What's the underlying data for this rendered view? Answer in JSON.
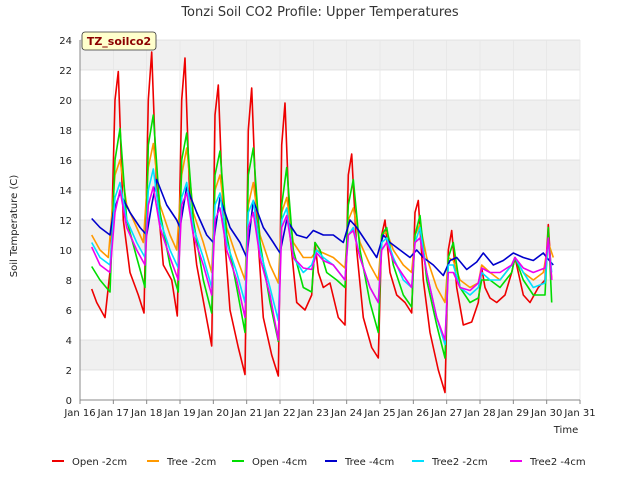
{
  "chart_data": {
    "type": "line",
    "title": "Tonzi Soil CO2 Profile: Upper Temperatures",
    "xlabel": "Time",
    "ylabel": "Soil Temperature (C)",
    "tag_label": "TZ_soilco2",
    "xlim": [
      16,
      31
    ],
    "ylim": [
      0,
      24
    ],
    "x_ticks": [
      16,
      17,
      18,
      19,
      20,
      21,
      22,
      23,
      24,
      25,
      26,
      27,
      28,
      29,
      30,
      31
    ],
    "x_tick_labels": [
      "Jan 16",
      "Jan 17",
      "Jan 18",
      "Jan 19",
      "Jan 20",
      "Jan 21",
      "Jan 22",
      "Jan 23",
      "Jan 24",
      "Jan 25",
      "Jan 26",
      "Jan 27",
      "Jan 28",
      "Jan 29",
      "Jan 30",
      "Jan 31"
    ],
    "y_ticks": [
      0,
      2,
      4,
      6,
      8,
      10,
      12,
      14,
      16,
      18,
      20,
      22,
      24
    ],
    "grid": true,
    "legend_position": "bottom",
    "series": [
      {
        "name": "Open -2cm",
        "color": "#ee0000",
        "x": [
          16.35,
          16.5,
          16.75,
          16.92,
          17.05,
          17.15,
          17.3,
          17.5,
          17.75,
          17.92,
          18.05,
          18.15,
          18.3,
          18.5,
          18.75,
          18.92,
          19.05,
          19.15,
          19.3,
          19.5,
          19.75,
          19.95,
          20.05,
          20.15,
          20.3,
          20.5,
          20.75,
          20.95,
          21.05,
          21.15,
          21.3,
          21.5,
          21.75,
          21.95,
          22.05,
          22.15,
          22.3,
          22.5,
          22.75,
          22.95,
          23.05,
          23.15,
          23.3,
          23.5,
          23.75,
          23.95,
          24.05,
          24.15,
          24.3,
          24.5,
          24.75,
          24.95,
          25.05,
          25.15,
          25.3,
          25.5,
          25.75,
          25.95,
          26.05,
          26.15,
          26.3,
          26.5,
          26.75,
          26.95,
          27.05,
          27.15,
          27.3,
          27.5,
          27.75,
          27.95,
          28.05,
          28.15,
          28.3,
          28.5,
          28.75,
          28.95,
          29.05,
          29.15,
          29.3,
          29.5,
          29.75,
          29.95,
          30.05,
          30.15
        ],
        "y": [
          7.4,
          6.5,
          5.5,
          9.0,
          20.0,
          21.9,
          12.0,
          8.5,
          7.0,
          5.8,
          20.0,
          23.2,
          14.0,
          9.0,
          8.0,
          5.6,
          20.0,
          22.8,
          13.0,
          9.0,
          6.0,
          3.6,
          19.0,
          21.0,
          12.0,
          6.0,
          3.5,
          1.7,
          18.0,
          20.8,
          12.0,
          5.5,
          3.0,
          1.6,
          17.0,
          19.8,
          11.0,
          6.5,
          6.0,
          7.0,
          10.5,
          8.5,
          7.5,
          7.8,
          5.5,
          5.0,
          15.0,
          16.4,
          10.0,
          5.5,
          3.5,
          2.8,
          11.0,
          12.0,
          8.5,
          7.0,
          6.5,
          5.8,
          12.5,
          13.3,
          8.0,
          4.5,
          2.0,
          0.5,
          10.0,
          11.3,
          7.5,
          5.0,
          5.2,
          6.5,
          8.8,
          7.5,
          6.8,
          6.5,
          7.0,
          8.5,
          9.5,
          8.5,
          7.0,
          6.5,
          7.5,
          8.0,
          11.7,
          8.0
        ]
      },
      {
        "name": "Tree -2cm",
        "color": "#ff9900",
        "x": [
          16.35,
          16.6,
          16.85,
          17.05,
          17.2,
          17.4,
          17.7,
          17.9,
          18.05,
          18.2,
          18.4,
          18.7,
          18.9,
          19.05,
          19.2,
          19.4,
          19.7,
          19.95,
          20.05,
          20.2,
          20.4,
          20.7,
          20.95,
          21.05,
          21.2,
          21.4,
          21.7,
          21.95,
          22.05,
          22.2,
          22.4,
          22.7,
          22.95,
          23.1,
          23.3,
          23.6,
          23.95,
          24.05,
          24.2,
          24.4,
          24.7,
          24.95,
          25.05,
          25.2,
          25.4,
          25.7,
          25.95,
          26.05,
          26.2,
          26.4,
          26.7,
          26.95,
          27.05,
          27.2,
          27.4,
          27.7,
          27.95,
          28.05,
          28.3,
          28.6,
          28.95,
          29.05,
          29.3,
          29.6,
          29.9,
          30.05,
          30.2
        ],
        "y": [
          11.0,
          10.0,
          9.5,
          15.0,
          16.0,
          13.0,
          11.5,
          10.5,
          15.5,
          17.1,
          13.0,
          11.0,
          10.0,
          15.0,
          16.8,
          12.5,
          10.5,
          8.5,
          14.0,
          15.0,
          11.5,
          9.5,
          8.0,
          13.0,
          14.5,
          11.0,
          9.0,
          7.8,
          12.5,
          13.5,
          10.5,
          9.5,
          9.5,
          10.0,
          9.8,
          9.5,
          8.8,
          12.0,
          12.8,
          10.5,
          9.0,
          8.0,
          11.0,
          11.2,
          10.0,
          9.0,
          8.5,
          11.0,
          11.7,
          9.5,
          7.5,
          6.5,
          9.5,
          9.3,
          8.0,
          7.5,
          7.8,
          9.0,
          8.5,
          8.0,
          9.0,
          9.5,
          8.5,
          8.0,
          8.5,
          10.5,
          9.5
        ]
      },
      {
        "name": "Open -4cm",
        "color": "#00dd00",
        "x": [
          16.35,
          16.6,
          16.9,
          17.05,
          17.2,
          17.4,
          17.7,
          17.95,
          18.05,
          18.2,
          18.4,
          18.7,
          18.95,
          19.05,
          19.2,
          19.4,
          19.7,
          19.95,
          20.05,
          20.2,
          20.4,
          20.7,
          20.95,
          21.05,
          21.2,
          21.4,
          21.7,
          21.95,
          22.05,
          22.2,
          22.4,
          22.7,
          22.95,
          23.05,
          23.2,
          23.4,
          23.7,
          23.95,
          24.05,
          24.2,
          24.4,
          24.7,
          24.95,
          25.05,
          25.2,
          25.4,
          25.7,
          25.95,
          26.05,
          26.2,
          26.4,
          26.7,
          26.95,
          27.05,
          27.2,
          27.4,
          27.7,
          27.95,
          28.05,
          28.3,
          28.6,
          28.95,
          29.05,
          29.3,
          29.6,
          29.95,
          30.05,
          30.15
        ],
        "y": [
          8.9,
          8.0,
          7.2,
          16.0,
          18.1,
          12.0,
          9.5,
          7.5,
          17.0,
          19.0,
          12.5,
          9.0,
          7.2,
          16.0,
          17.8,
          12.0,
          8.0,
          5.8,
          15.0,
          16.6,
          11.0,
          7.5,
          4.5,
          15.0,
          16.8,
          10.5,
          6.5,
          3.9,
          13.0,
          15.5,
          10.0,
          7.5,
          7.2,
          10.5,
          10.0,
          8.5,
          8.0,
          7.5,
          13.0,
          14.7,
          10.0,
          6.5,
          4.5,
          11.0,
          11.5,
          9.0,
          7.0,
          6.2,
          11.0,
          12.3,
          8.0,
          5.0,
          2.8,
          9.5,
          10.5,
          7.5,
          6.5,
          6.8,
          8.0,
          8.0,
          7.5,
          8.5,
          9.5,
          8.0,
          7.0,
          7.0,
          11.5,
          6.5
        ]
      },
      {
        "name": "Tree -4cm",
        "color": "#0000cc",
        "x": [
          16.35,
          16.6,
          16.9,
          17.0,
          17.2,
          17.5,
          17.8,
          18.0,
          18.15,
          18.3,
          18.6,
          18.9,
          19.0,
          19.2,
          19.5,
          19.8,
          20.0,
          20.2,
          20.5,
          20.8,
          21.0,
          21.2,
          21.5,
          21.8,
          22.0,
          22.2,
          22.5,
          22.8,
          23.0,
          23.3,
          23.6,
          23.9,
          24.1,
          24.3,
          24.6,
          24.9,
          25.1,
          25.3,
          25.6,
          25.9,
          26.1,
          26.3,
          26.6,
          26.9,
          27.1,
          27.3,
          27.6,
          27.9,
          28.1,
          28.4,
          28.7,
          29.0,
          29.3,
          29.6,
          29.9,
          30.0,
          30.2
        ],
        "y": [
          12.1,
          11.5,
          11.0,
          12.5,
          13.8,
          12.5,
          11.5,
          11.0,
          13.0,
          14.7,
          13.0,
          12.0,
          11.5,
          14.2,
          12.5,
          11.0,
          10.5,
          13.5,
          11.5,
          10.5,
          9.5,
          13.3,
          11.5,
          10.5,
          9.8,
          12.0,
          11.0,
          10.8,
          11.3,
          11.0,
          11.0,
          10.5,
          12.0,
          11.5,
          10.5,
          9.5,
          11.0,
          10.5,
          10.0,
          9.5,
          10.0,
          9.5,
          9.0,
          8.3,
          9.3,
          9.5,
          8.7,
          9.2,
          9.8,
          9.0,
          9.3,
          9.8,
          9.5,
          9.3,
          9.8,
          9.5,
          9.0
        ]
      },
      {
        "name": "Tree2 -2cm",
        "color": "#00e0ff",
        "x": [
          16.35,
          16.6,
          16.9,
          17.05,
          17.2,
          17.4,
          17.7,
          17.95,
          18.05,
          18.2,
          18.4,
          18.7,
          18.95,
          19.05,
          19.2,
          19.4,
          19.7,
          19.95,
          20.05,
          20.2,
          20.4,
          20.7,
          20.95,
          21.05,
          21.2,
          21.4,
          21.7,
          21.95,
          22.05,
          22.2,
          22.4,
          22.7,
          22.95,
          23.1,
          23.3,
          23.6,
          23.95,
          24.05,
          24.2,
          24.4,
          24.7,
          24.95,
          25.05,
          25.2,
          25.4,
          25.7,
          25.95,
          26.05,
          26.2,
          26.4,
          26.7,
          26.95,
          27.05,
          27.2,
          27.4,
          27.7,
          27.95,
          28.05,
          28.3,
          28.6,
          28.95,
          29.05,
          29.3,
          29.6,
          29.95,
          30.05,
          30.15
        ],
        "y": [
          10.5,
          9.5,
          9.0,
          13.5,
          14.5,
          12.0,
          10.5,
          9.5,
          14.0,
          15.4,
          12.0,
          10.0,
          8.8,
          13.5,
          14.5,
          11.5,
          9.5,
          7.5,
          13.0,
          13.8,
          10.5,
          8.5,
          6.5,
          12.5,
          13.3,
          10.0,
          7.5,
          5.3,
          12.0,
          12.8,
          9.5,
          8.5,
          9.0,
          10.0,
          9.5,
          9.0,
          8.0,
          11.0,
          11.5,
          9.5,
          7.5,
          6.5,
          10.5,
          10.8,
          9.5,
          8.0,
          7.5,
          10.5,
          11.5,
          8.5,
          5.5,
          3.7,
          9.0,
          9.0,
          7.5,
          7.0,
          7.5,
          8.5,
          8.0,
          8.0,
          9.0,
          9.5,
          8.5,
          7.5,
          7.8,
          10.7,
          8.5
        ]
      },
      {
        "name": "Tree2 -4cm",
        "color": "#ee00ee",
        "x": [
          16.35,
          16.6,
          16.9,
          17.05,
          17.2,
          17.4,
          17.7,
          17.95,
          18.05,
          18.2,
          18.4,
          18.7,
          18.95,
          19.05,
          19.2,
          19.4,
          19.7,
          19.95,
          20.05,
          20.2,
          20.4,
          20.7,
          20.95,
          21.05,
          21.2,
          21.4,
          21.7,
          21.95,
          22.05,
          22.2,
          22.4,
          22.7,
          22.95,
          23.1,
          23.3,
          23.6,
          23.95,
          24.05,
          24.2,
          24.4,
          24.7,
          24.95,
          25.05,
          25.2,
          25.4,
          25.7,
          25.95,
          26.05,
          26.2,
          26.4,
          26.7,
          26.95,
          27.05,
          27.2,
          27.4,
          27.7,
          27.95,
          28.05,
          28.3,
          28.6,
          28.95,
          29.05,
          29.3,
          29.6,
          29.95,
          30.05,
          30.15
        ],
        "y": [
          10.2,
          9.0,
          8.5,
          12.5,
          14.0,
          11.5,
          10.0,
          9.0,
          13.0,
          14.2,
          11.5,
          9.5,
          8.0,
          13.0,
          13.8,
          11.0,
          9.0,
          7.0,
          12.0,
          12.8,
          10.0,
          8.0,
          5.5,
          11.5,
          12.5,
          9.5,
          7.0,
          4.0,
          11.5,
          12.3,
          9.5,
          8.8,
          8.7,
          9.8,
          9.3,
          9.0,
          8.0,
          11.0,
          11.3,
          9.5,
          7.5,
          6.5,
          10.0,
          10.5,
          9.3,
          8.3,
          7.5,
          10.5,
          10.8,
          8.5,
          5.5,
          4.0,
          8.5,
          8.5,
          7.5,
          7.3,
          7.8,
          8.8,
          8.5,
          8.5,
          9.0,
          9.5,
          8.8,
          8.5,
          8.8,
          10.8,
          8.0
        ]
      }
    ]
  }
}
